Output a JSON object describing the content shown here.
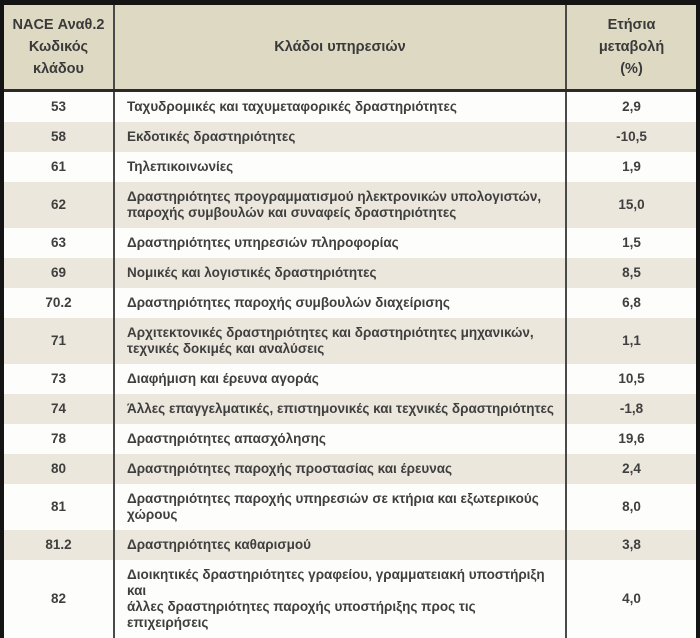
{
  "table": {
    "headers": {
      "code_lines": [
        "NACE Αναθ.2",
        "Κωδικός",
        "κλάδου"
      ],
      "sector": "Κλάδοι υπηρεσιών",
      "change_lines": [
        "Ετήσια",
        "μεταβολή",
        "(%)"
      ]
    },
    "rows": [
      {
        "code": "53",
        "sector": "Ταχυδρομικές και ταχυμεταφορικές δραστηριότητες",
        "change": "2,9"
      },
      {
        "code": "58",
        "sector": "Εκδοτικές δραστηριότητες",
        "change": "-10,5"
      },
      {
        "code": "61",
        "sector": "Τηλεπικοινωνίες",
        "change": "1,9"
      },
      {
        "code": "62",
        "sector": "Δραστηριότητες προγραμματισμού ηλεκτρονικών υπολογιστών,\nπαροχής συμβουλών και συναφείς δραστηριότητες",
        "change": "15,0"
      },
      {
        "code": "63",
        "sector": "Δραστηριότητες υπηρεσιών πληροφορίας",
        "change": "1,5"
      },
      {
        "code": "69",
        "sector": "Νομικές και λογιστικές δραστηριότητες",
        "change": "8,5"
      },
      {
        "code": "70.2",
        "sector": "Δραστηριότητες παροχής συμβουλών διαχείρισης",
        "change": "6,8"
      },
      {
        "code": "71",
        "sector": "Αρχιτεκτονικές δραστηριότητες και δραστηριότητες μηχανικών,\nτεχνικές δοκιμές και αναλύσεις",
        "change": "1,1"
      },
      {
        "code": "73",
        "sector": "Διαφήμιση και έρευνα αγοράς",
        "change": "10,5"
      },
      {
        "code": "74",
        "sector": "Άλλες επαγγελματικές, επιστημονικές και τεχνικές δραστηριότητες",
        "change": "-1,8"
      },
      {
        "code": "78",
        "sector": "Δραστηριότητες απασχόλησης",
        "change": "19,6"
      },
      {
        "code": "80",
        "sector": "Δραστηριότητες παροχής προστασίας και έρευνας",
        "change": "2,4"
      },
      {
        "code": "81",
        "sector": "Δραστηριότητες παροχής υπηρεσιών σε κτήρια και εξωτερικούς\nχώρους",
        "change": "8,0"
      },
      {
        "code": "81.2",
        "sector": "Δραστηριότητες καθαρισμού",
        "change": "3,8"
      },
      {
        "code": "82",
        "sector": "Διοικητικές δραστηριότητες γραφείου, γραμματειακή υποστήριξη και\nάλλες δραστηριότητες παροχής υποστήριξης προς τις επιχειρήσεις",
        "change": "4,0"
      }
    ]
  },
  "colors": {
    "frame": "#141414",
    "header_bg": "#ded9c3",
    "row_shaded_bg": "#ebe7dc",
    "row_plain_bg": "#fdfdfc",
    "grid_line": "#4a4a4a",
    "text": "#3f3f3f"
  }
}
